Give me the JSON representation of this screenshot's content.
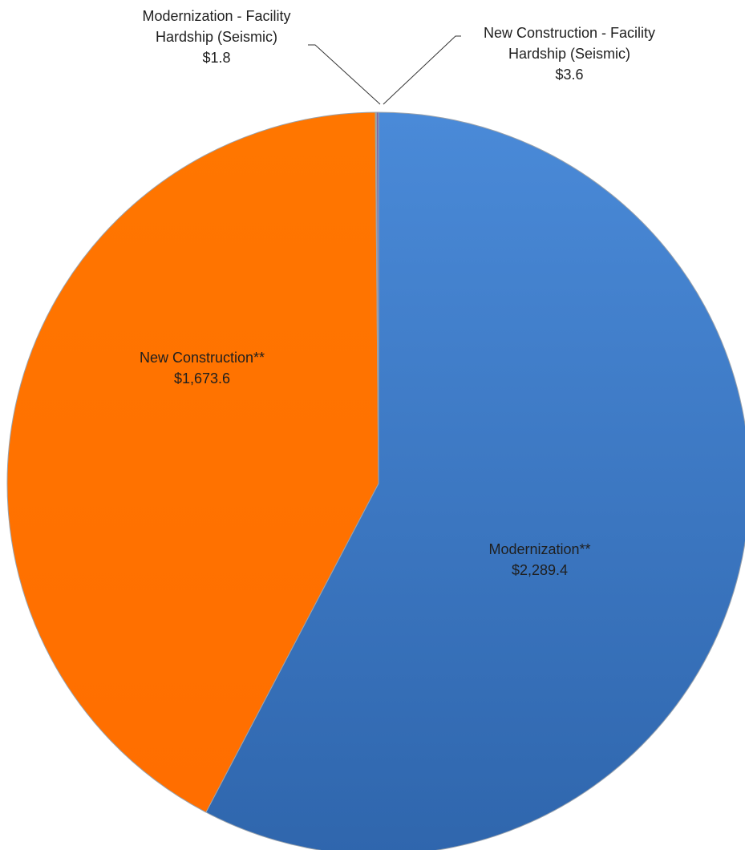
{
  "chart_data": {
    "type": "pie",
    "title": "",
    "slices": [
      {
        "name": "Modernization**",
        "value": 2289.4,
        "value_label": "$2,289.4",
        "color": "#3a74c4",
        "label_lines": [
          "Modernization**",
          "$2,289.4"
        ]
      },
      {
        "name": "New Construction**",
        "value": 1673.6,
        "value_label": "$1,673.6",
        "color": "#ff7200",
        "label_lines": [
          "New Construction**",
          "$1,673.6"
        ]
      },
      {
        "name": "Modernization - Facility Hardship (Seismic)",
        "value": 1.8,
        "value_label": "$1.8",
        "color": "#9bbb59",
        "label_lines": [
          "Modernization - Facility",
          "Hardship (Seismic)",
          "$1.8"
        ]
      },
      {
        "name": "New Construction - Facility Hardship (Seismic)",
        "value": 3.6,
        "value_label": "$3.6",
        "color": "#8064a2",
        "label_lines": [
          "New Construction - Facility",
          "Hardship (Seismic)",
          "$3.6"
        ]
      }
    ],
    "start_angle_deg": 0,
    "direction": "clockwise",
    "legend": "none",
    "label_style": "category name and value, leader lines for small slices"
  }
}
